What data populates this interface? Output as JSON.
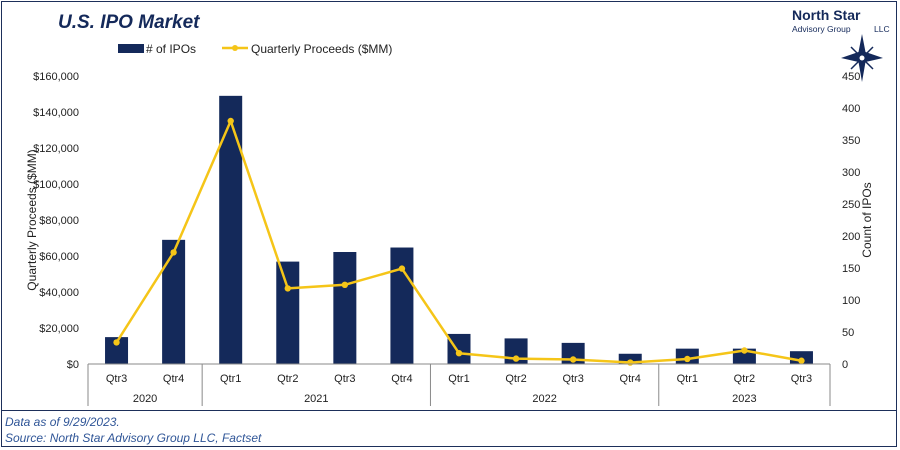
{
  "title": "U.S. IPO Market",
  "logo": {
    "line1": "North Star",
    "line2": "Advisory Group",
    "line3": "LLC"
  },
  "footer": {
    "note": "Data as of 9/29/2023.",
    "source": "Source: North Star Advisory Group LLC, Factset"
  },
  "colors": {
    "bars": "#14295a",
    "line": "#f5c518",
    "title": "#14295a",
    "footer_text": "#2f5597"
  },
  "chart_data": {
    "type": "bar",
    "title": "U.S. IPO Market",
    "quarters": [
      "Qtr3",
      "Qtr4",
      "Qtr1",
      "Qtr2",
      "Qtr3",
      "Qtr4",
      "Qtr1",
      "Qtr2",
      "Qtr3",
      "Qtr4",
      "Qtr1",
      "Qtr2",
      "Qtr3"
    ],
    "years": [
      {
        "label": "2020",
        "span": 2
      },
      {
        "label": "2021",
        "span": 4
      },
      {
        "label": "2022",
        "span": 4
      },
      {
        "label": "2023",
        "span": 3
      }
    ],
    "series": [
      {
        "name": "# of IPOs",
        "type": "bar",
        "axis": "right",
        "values": [
          42,
          194,
          419,
          160,
          175,
          182,
          47,
          40,
          33,
          16,
          24,
          24,
          20
        ]
      },
      {
        "name": "Quarterly Proceeds ($MM)",
        "type": "line",
        "axis": "left",
        "values": [
          12000,
          62000,
          135000,
          42000,
          44000,
          53000,
          6000,
          3000,
          2500,
          800,
          2800,
          7500,
          1800
        ]
      }
    ],
    "y_left": {
      "label": "Quarterly Proceeds ($MM)",
      "min": 0,
      "max": 160000,
      "step": 20000,
      "ticks": [
        "$0",
        "$20,000",
        "$40,000",
        "$60,000",
        "$80,000",
        "$100,000",
        "$120,000",
        "$140,000",
        "$160,000"
      ]
    },
    "y_right": {
      "label": "Count of IPOs",
      "min": 0,
      "max": 450,
      "step": 50,
      "ticks": [
        "0",
        "50",
        "100",
        "150",
        "200",
        "250",
        "300",
        "350",
        "400",
        "450"
      ]
    },
    "legend_position": "top-left",
    "grid": false
  }
}
